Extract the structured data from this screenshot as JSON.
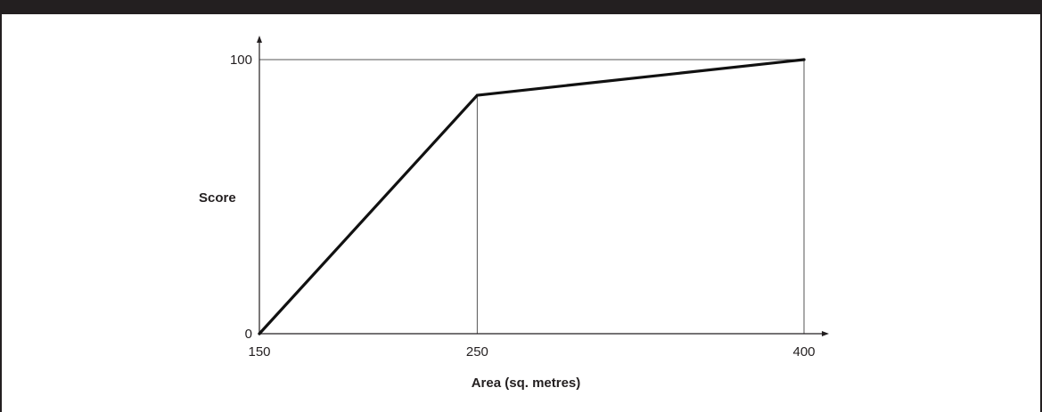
{
  "chart_data": {
    "type": "line",
    "xlabel": "Area (sq. metres)",
    "ylabel": "Score",
    "x_ticks": [
      "150",
      "250",
      "400"
    ],
    "y_ticks": [
      "0",
      "100"
    ],
    "xlim": [
      150,
      400
    ],
    "ylim": [
      0,
      100
    ],
    "series": [
      {
        "x": [
          150,
          250,
          400
        ],
        "y": [
          0,
          87,
          100
        ]
      }
    ],
    "reference_lines": {
      "horizontal_y": 100,
      "vertical_x": [
        250,
        400
      ]
    },
    "colors": {
      "line": "#111111",
      "axes": "#231f20",
      "reference": "#555555"
    }
  }
}
